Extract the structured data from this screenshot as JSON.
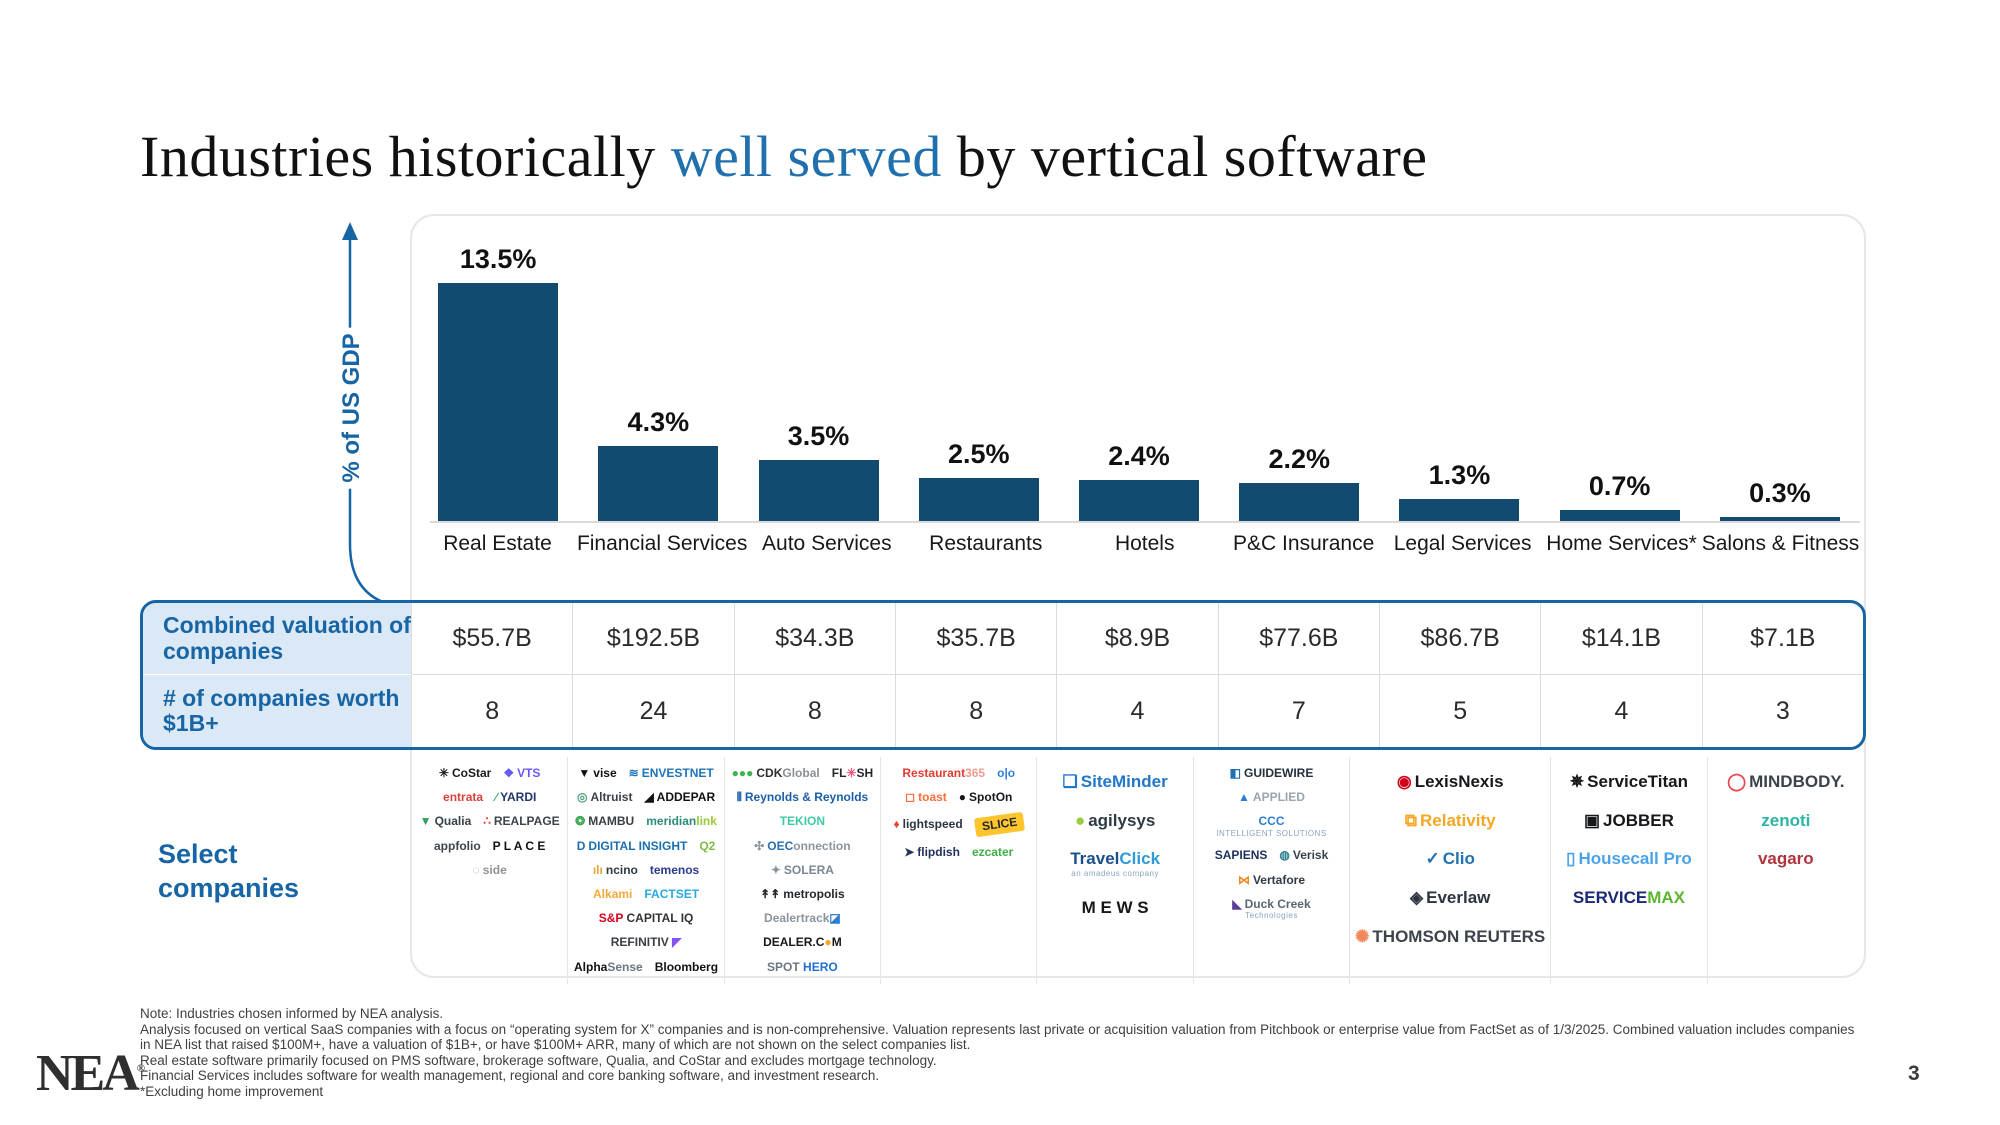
{
  "title": {
    "prefix": "Industries historically ",
    "highlight": "well served",
    "suffix": " by vertical software"
  },
  "chart_data": {
    "type": "bar",
    "title": "",
    "xlabel": "",
    "ylabel": "% of US GDP",
    "ylim": [
      0,
      14
    ],
    "grid": false,
    "bar_color": "#134b70",
    "categories": [
      "Real Estate",
      "Financial Services",
      "Auto Services",
      "Restaurants",
      "Hotels",
      "P&C Insurance",
      "Legal Services",
      "Home Services*",
      "Salons & Fitness"
    ],
    "values": [
      13.5,
      4.3,
      3.5,
      2.5,
      2.4,
      2.2,
      1.3,
      0.7,
      0.3
    ],
    "value_labels": [
      "13.5%",
      "4.3%",
      "3.5%",
      "2.5%",
      "2.4%",
      "2.2%",
      "1.3%",
      "0.7%",
      "0.3%"
    ]
  },
  "table": {
    "rows": [
      {
        "label": "Combined valuation of companies",
        "values": [
          "$55.7B",
          "$192.5B",
          "$34.3B",
          "$35.7B",
          "$8.9B",
          "$77.6B",
          "$86.7B",
          "$14.1B",
          "$7.1B"
        ]
      },
      {
        "label": "# of companies worth $1B+",
        "values": [
          "8",
          "24",
          "8",
          "8",
          "4",
          "7",
          "5",
          "4",
          "3"
        ]
      }
    ]
  },
  "select_companies_label": "Select companies",
  "logo_columns": [
    {
      "industry": "Real Estate",
      "two_col": true,
      "items": [
        {
          "name": "costar",
          "icon": "✳",
          "iconColor": "#1a1a1a",
          "label": "CoStar",
          "color": "#1a1a1a"
        },
        {
          "name": "vts",
          "icon": "❖",
          "iconColor": "#6658f5",
          "label": "VTS",
          "color": "#6658f5"
        },
        {
          "name": "entrata",
          "label": "entrata",
          "color": "#d8423c"
        },
        {
          "name": "yardi",
          "icon": "∕",
          "iconColor": "#3aa87c",
          "label": "YARDI",
          "color": "#23366f"
        },
        {
          "name": "qualia",
          "icon": "▼",
          "iconColor": "#2f9e62",
          "label": "Qualia",
          "color": "#37424a"
        },
        {
          "name": "realpage",
          "icon": "∴",
          "iconColor": "#e0392e",
          "label": "REALPAGE",
          "color": "#3c434b"
        },
        {
          "name": "appfolio",
          "label": "appfolio",
          "color": "#3f464d"
        },
        {
          "name": "place",
          "label": "P L A C E",
          "color": "#111111"
        },
        {
          "name": "side",
          "icon": "◌",
          "iconColor": "#9aa0a6",
          "label": "side",
          "color": "#8d9298"
        }
      ]
    },
    {
      "industry": "Financial Services",
      "two_col": true,
      "items": [
        {
          "name": "vise",
          "icon": "▼",
          "iconColor": "#111111",
          "label": "vise",
          "color": "#111111"
        },
        {
          "name": "envestnet",
          "icon": "≋",
          "iconColor": "#1f74b8",
          "label": "ENVESTNET",
          "color": "#1f74b8"
        },
        {
          "name": "altruist",
          "icon": "◎",
          "iconColor": "#49a27a",
          "label": "Altruist",
          "color": "#3a4149"
        },
        {
          "name": "addepar",
          "icon": "◢",
          "iconColor": "#111111",
          "label": "ADDEPAR",
          "color": "#111111"
        },
        {
          "name": "mambu",
          "icon": "❂",
          "iconColor": "#35a24a",
          "label": "MAMBU",
          "color": "#394046"
        },
        {
          "name": "meridianlink",
          "label": "meridian",
          "color": "#2c8c7a",
          "label2": "link",
          "color2": "#9acb3c"
        },
        {
          "name": "digital-insight",
          "icon": "D",
          "iconColor": "#1b6fae",
          "label": "DIGITAL INSIGHT",
          "color": "#1b6fae"
        },
        {
          "name": "q2",
          "label": "Q2",
          "color": "#7fbc42"
        },
        {
          "name": "ncino",
          "icon": "ılı",
          "iconColor": "#e8a33d",
          "label": "ncino",
          "color": "#2e3a45"
        },
        {
          "name": "temenos",
          "label": "temenos",
          "color": "#283b8f"
        },
        {
          "name": "alkami",
          "label": "Alkami",
          "color": "#f2a93b"
        },
        {
          "name": "factset",
          "label": "FACTSET",
          "color": "#28a8e0"
        },
        {
          "name": "sp-capital-iq",
          "label": "S&P",
          "color": "#d6001c",
          "label2": " CAPITAL IQ",
          "color2": "#333333"
        },
        {
          "name": "refinitiv",
          "label": "REFINITIV",
          "color": "#3a3f45",
          "label2": " ◤",
          "color2": "#8650f5"
        },
        {
          "name": "alphasense",
          "label": "Alpha",
          "color": "#111111",
          "label2": "Sense",
          "color2": "#6b7680"
        },
        {
          "name": "bloomberg",
          "label": "Bloomberg",
          "color": "#111111"
        }
      ]
    },
    {
      "industry": "Auto Services",
      "two_col": true,
      "items": [
        {
          "name": "cdk-global",
          "icon": "●●●",
          "iconColor": "#3bb54a",
          "label": "CDK",
          "color": "#2e2e2e",
          "label2": "Global",
          "color2": "#8a9097"
        },
        {
          "name": "flash",
          "label": "FL",
          "color": "#23272c",
          "label2": "✳",
          "color2": "#f0527a",
          "label3": "SH",
          "color3": "#23272c"
        },
        {
          "name": "reynolds-reynolds",
          "icon": "⦀",
          "iconColor": "#1b5fa8",
          "label": "Reynolds & Reynolds",
          "color": "#1b5fa8"
        },
        {
          "name": "tekion",
          "label": "TEKION",
          "color": "#3ec9a7"
        },
        {
          "name": "oeconnection",
          "icon": "✣",
          "iconColor": "#8b949c",
          "label": "OEC",
          "color": "#2b6fae",
          "label2": "onnection",
          "color2": "#8b949c"
        },
        {
          "name": "solera",
          "icon": "✦",
          "iconColor": "#8b949c",
          "label": "SOLERA",
          "color": "#7c8794"
        },
        {
          "name": "metropolis",
          "icon": "↟↟",
          "iconColor": "#23272c",
          "label": "metropolis",
          "color": "#23272c"
        },
        {
          "name": "dealertrack",
          "label": "Dealertrack",
          "color": "#8b949c",
          "label2": "◪",
          "color2": "#2d7dd2"
        },
        {
          "name": "dealer-com",
          "label": "DEALER.C",
          "color": "#16181b",
          "label2": "●",
          "color2": "#f5a623",
          "label3": "M",
          "color3": "#16181b"
        },
        {
          "name": "spothero",
          "label": "SPOT",
          "color": "#6b7680",
          "label2": " HERO",
          "color2": "#1f6fd0"
        }
      ]
    },
    {
      "industry": "Restaurants",
      "two_col": true,
      "items": [
        {
          "name": "restaurant365",
          "label": "Restaurant",
          "color": "#e03c31",
          "label2": "365",
          "color2": "#f39a93"
        },
        {
          "name": "olo",
          "label": "o|o",
          "color": "#2f7de1"
        },
        {
          "name": "toast",
          "icon": "◻",
          "iconColor": "#ff6b3d",
          "label": "toast",
          "color": "#ff6b3d"
        },
        {
          "name": "spoton",
          "icon": "●",
          "iconColor": "#16181b",
          "label": "SpotOn",
          "color": "#16181b"
        },
        {
          "name": "lightspeed",
          "icon": "♦",
          "iconColor": "#e8442e",
          "label": "lightspeed",
          "color": "#2b3440"
        },
        {
          "name": "slice",
          "label": "SLICE",
          "color": "#23272c",
          "bg": "#ffc52f"
        },
        {
          "name": "flipdish",
          "icon": "➤",
          "iconColor": "#22325c",
          "label": "flipdish",
          "color": "#22325c"
        },
        {
          "name": "ezcater",
          "label": "ez",
          "color": "#3fae49",
          "label2": "cater",
          "color2": "#3fae49"
        }
      ]
    },
    {
      "industry": "Hotels",
      "two_col": false,
      "items": [
        {
          "name": "siteminder",
          "icon": "❏",
          "iconColor": "#2277c9",
          "label": "SiteMinder",
          "color": "#2277c9"
        },
        {
          "name": "agilysys",
          "icon": "●",
          "iconColor": "#9ccb3b",
          "label": "agilysys",
          "color": "#2e3a45"
        },
        {
          "name": "travelclick",
          "label": "Travel",
          "color": "#1b4f8a",
          "label2": "Click",
          "color2": "#2e9bd6",
          "sub": "an amadeus company"
        },
        {
          "name": "mews",
          "label": "M E W S",
          "color": "#16181b"
        }
      ]
    },
    {
      "industry": "P&C Insurance",
      "two_col": true,
      "items": [
        {
          "name": "guidewire",
          "icon": "◧",
          "iconColor": "#1f6fb5",
          "label": "GUIDEWIRE",
          "color": "#22303b"
        },
        {
          "name": "applied",
          "icon": "▲",
          "iconColor": "#2d7dd2",
          "label": "APPLIED",
          "color": "#9aa5ad"
        },
        {
          "name": "ccc",
          "label": "CCC",
          "color": "#2d7dd2",
          "sub": "INTELLIGENT SOLUTIONS"
        },
        {
          "name": "sapiens",
          "label": "SAPIENS",
          "color": "#1b2f5e"
        },
        {
          "name": "verisk",
          "icon": "◍",
          "iconColor": "#2e7f8f",
          "label": "Verisk",
          "color": "#37424a"
        },
        {
          "name": "vertafore",
          "icon": "⋈",
          "iconColor": "#f08a24",
          "label": "Vertafore",
          "color": "#2e3a45"
        },
        {
          "name": "duck-creek",
          "icon": "◣",
          "iconColor": "#5b3e96",
          "label": "Duck Creek",
          "color": "#5b6770",
          "sub": "Technologies"
        }
      ]
    },
    {
      "industry": "Legal Services",
      "two_col": false,
      "items": [
        {
          "name": "lexisnexis",
          "icon": "◉",
          "iconColor": "#d0021b",
          "label": "LexisNexis",
          "color": "#16181b"
        },
        {
          "name": "relativity",
          "icon": "⧉",
          "iconColor": "#f5a623",
          "label": "Relativity",
          "color": "#f5a623"
        },
        {
          "name": "clio",
          "icon": "✓",
          "iconColor": "#2271b3",
          "label": "Clio",
          "color": "#2271b3"
        },
        {
          "name": "everlaw",
          "icon": "◈",
          "iconColor": "#2b3440",
          "label": "Everlaw",
          "color": "#2b3440"
        },
        {
          "name": "thomson-reuters",
          "icon": "✺",
          "iconColor": "#f0875a",
          "label": "THOMSON REUTERS",
          "color": "#3c434b"
        }
      ]
    },
    {
      "industry": "Home Services",
      "two_col": false,
      "items": [
        {
          "name": "servicetitan",
          "icon": "✵",
          "iconColor": "#16181b",
          "label": "ServiceTitan",
          "color": "#16181b"
        },
        {
          "name": "jobber",
          "icon": "▣",
          "iconColor": "#16181b",
          "label": "JOBBER",
          "color": "#16181b"
        },
        {
          "name": "housecall-pro",
          "icon": "▯",
          "iconColor": "#4aa3e8",
          "label": "Housecall Pro",
          "color": "#4aa3e8"
        },
        {
          "name": "servicemax",
          "label": "SERVICE",
          "color": "#1b2a78",
          "label2": "MAX",
          "color2": "#5cb531"
        }
      ]
    },
    {
      "industry": "Salons & Fitness",
      "two_col": false,
      "items": [
        {
          "name": "mindbody",
          "icon": "◯",
          "iconColor": "#e8484f",
          "label": "MIND",
          "color": "#3c434b",
          "label2": "BODY.",
          "color2": "#3c434b"
        },
        {
          "name": "zenoti",
          "label": "zenoti",
          "color": "#2ab5a5"
        },
        {
          "name": "vagaro",
          "label": "vagaro",
          "color": "#b0353f"
        }
      ]
    }
  ],
  "footnotes": [
    "Note: Industries chosen informed by NEA analysis.",
    "Analysis focused on vertical SaaS companies with a focus on “operating system for X” companies and is non-comprehensive. Valuation represents last private or acquisition valuation from Pitchbook or enterprise value from FactSet as of 1/3/2025. Combined valuation includes companies",
    "in NEA list that raised $100M+, have a valuation of $1B+, or have $100M+ ARR, many of which are not shown on the select companies list.",
    "Real estate software primarily focused on PMS software, brokerage software, Qualia, and CoStar and excludes mortgage technology.",
    "Financial Services includes software for wealth management, regional and core banking software, and investment research.",
    "*Excluding home improvement"
  ],
  "page_number": "3",
  "brand_logo": "NEA",
  "colors": {
    "accent_blue": "#1765a5",
    "title_blue": "#2170ae",
    "bar": "#134b70",
    "light_blue_bg": "#dbe9f6",
    "panel_border": "#e6e6e6"
  }
}
